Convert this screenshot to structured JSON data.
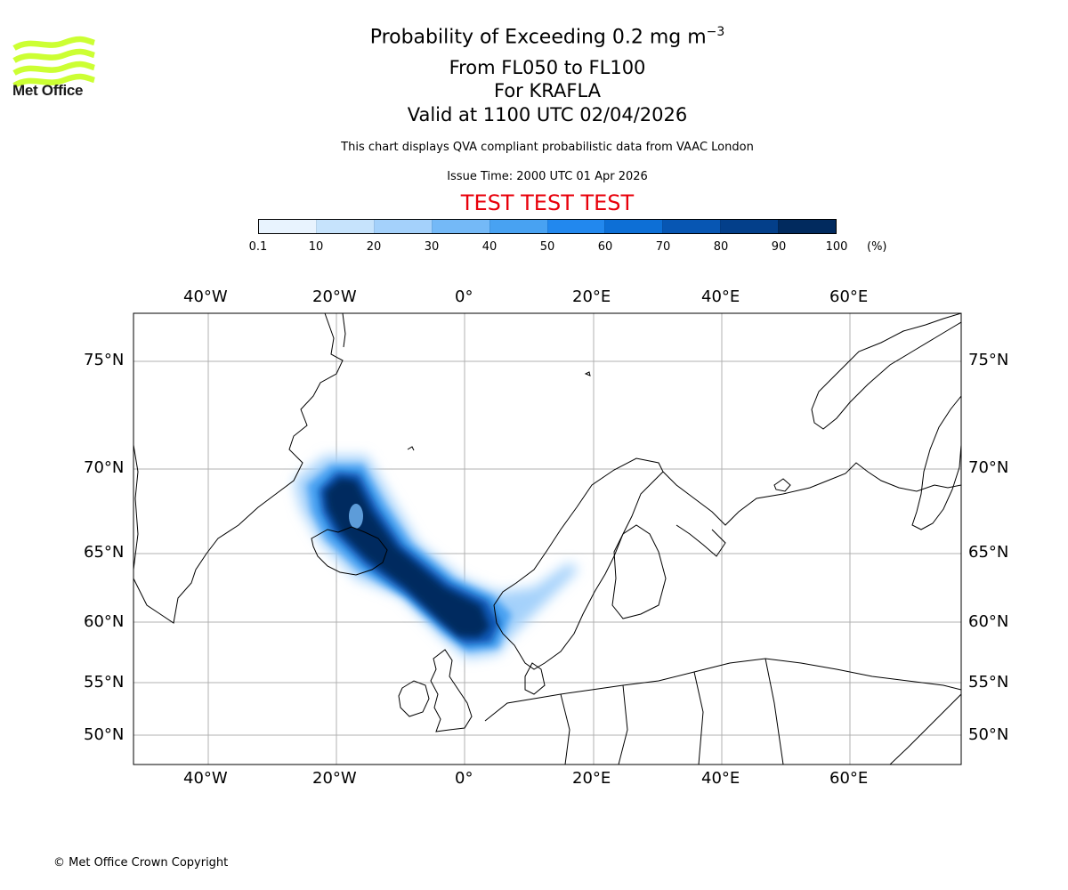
{
  "header": {
    "title_main": "Probability of Exceeding 0.2 mg m",
    "title_sup": "−3",
    "flight_levels": "From FL050 to FL100",
    "volcano": "For KRAFLA",
    "valid": "Valid at 1100 UTC 02/04/2026",
    "description": "This chart displays QVA compliant probabilistic data from VAAC London",
    "issue_time": "Issue Time: 2000 UTC 01 Apr 2026",
    "test_banner": "TEST TEST TEST"
  },
  "logo": {
    "text": "Met Office",
    "color": "#ccff33"
  },
  "colorbar": {
    "ticks": [
      "0.1",
      "10",
      "20",
      "30",
      "40",
      "50",
      "60",
      "70",
      "80",
      "90",
      "100"
    ],
    "unit": "(%)",
    "colors": [
      "#e8f3fe",
      "#c6e3fc",
      "#a4d1fb",
      "#74b9f7",
      "#48a2f2",
      "#2288ee",
      "#0d6fd6",
      "#0756b3",
      "#033f8a",
      "#012a5e"
    ]
  },
  "map": {
    "lon_labels": [
      "40°W",
      "20°W",
      "0°",
      "20°E",
      "40°E",
      "60°E"
    ],
    "lat_labels": [
      "75°N",
      "70°N",
      "65°N",
      "60°N",
      "55°N",
      "50°N"
    ],
    "gridline_color": "#b0b0b0"
  },
  "footer": {
    "copyright": "© Met Office Crown Copyright"
  }
}
